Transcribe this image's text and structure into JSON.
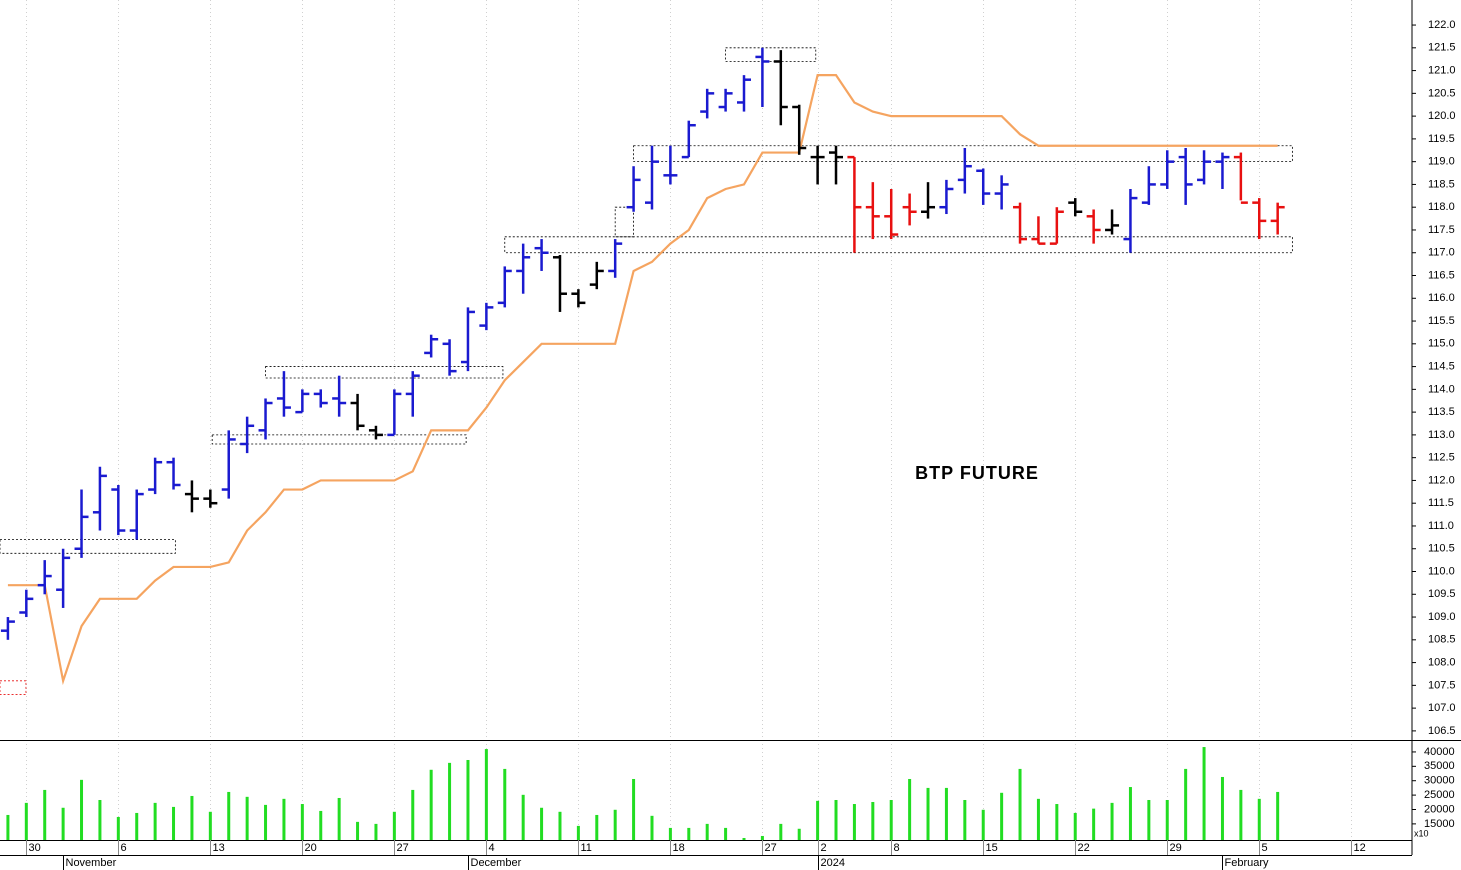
{
  "chart_data": {
    "type": "ohlc",
    "annotation": "BTP FUTURE",
    "categories": [
      null,
      null,
      null,
      null,
      null,
      null,
      null,
      null,
      null,
      null,
      null,
      null,
      null,
      null,
      null,
      null,
      null,
      null,
      null,
      null,
      null,
      null,
      null,
      null,
      null,
      null,
      null,
      null,
      null,
      null,
      null,
      null,
      null,
      null,
      null,
      null,
      null,
      null,
      null,
      null,
      null,
      null,
      null,
      null,
      null,
      null,
      null,
      null,
      null,
      null,
      null,
      null,
      null,
      null,
      null,
      null,
      null,
      null,
      null,
      null,
      null,
      null,
      null,
      null,
      null,
      null,
      null,
      null,
      null,
      null
    ],
    "open": [
      108.7,
      109.1,
      109.7,
      109.6,
      110.5,
      111.3,
      111.8,
      110.9,
      111.8,
      112.4,
      111.7,
      111.6,
      111.8,
      112.8,
      113.1,
      113.8,
      113.5,
      113.9,
      113.8,
      113.7,
      113.1,
      113.0,
      113.9,
      114.8,
      115.0,
      114.6,
      115.4,
      115.9,
      116.6,
      117.1,
      116.9,
      116.1,
      116.3,
      116.6,
      118.0,
      118.1,
      118.7,
      119.1,
      120.1,
      120.2,
      120.3,
      121.3,
      121.2,
      120.2,
      119.1,
      119.2,
      119.1,
      118.0,
      117.8,
      118.0,
      117.9,
      118.0,
      118.6,
      118.8,
      118.3,
      118.0,
      117.3,
      117.2,
      118.1,
      117.8,
      117.5,
      117.3,
      118.1,
      118.5,
      119.1,
      118.6,
      119.0,
      119.1,
      118.1,
      117.7
    ],
    "high": [
      109.0,
      109.6,
      110.25,
      110.5,
      111.8,
      112.3,
      111.9,
      111.8,
      112.5,
      112.5,
      112.0,
      111.8,
      113.1,
      113.4,
      113.8,
      114.4,
      114.0,
      114.0,
      114.3,
      113.9,
      113.2,
      114.0,
      114.4,
      115.2,
      115.1,
      115.8,
      115.9,
      116.7,
      117.2,
      117.3,
      116.95,
      116.2,
      116.8,
      117.3,
      118.9,
      119.35,
      119.35,
      119.9,
      120.6,
      120.6,
      120.9,
      121.5,
      121.45,
      120.25,
      119.35,
      119.35,
      119.1,
      118.55,
      118.4,
      118.3,
      118.55,
      118.6,
      119.3,
      118.85,
      118.7,
      118.1,
      117.8,
      118.0,
      118.2,
      117.95,
      117.95,
      118.4,
      118.9,
      119.25,
      119.3,
      119.25,
      119.2,
      119.2,
      118.2,
      118.1
    ],
    "low": [
      108.5,
      109.0,
      109.5,
      109.2,
      110.3,
      110.9,
      110.8,
      110.7,
      111.7,
      111.8,
      111.3,
      111.4,
      111.6,
      112.6,
      112.9,
      113.4,
      113.5,
      113.6,
      113.4,
      113.1,
      112.9,
      113.0,
      113.4,
      114.7,
      114.3,
      114.4,
      115.3,
      115.8,
      116.1,
      116.6,
      115.7,
      115.8,
      116.2,
      116.45,
      117.9,
      117.95,
      118.5,
      119.1,
      119.95,
      120.1,
      120.1,
      120.2,
      119.8,
      119.15,
      118.5,
      118.5,
      117.0,
      117.3,
      117.3,
      117.6,
      117.75,
      117.85,
      118.3,
      118.05,
      117.95,
      117.2,
      117.2,
      117.2,
      117.8,
      117.2,
      117.4,
      117.0,
      118.05,
      118.4,
      118.05,
      118.5,
      118.4,
      118.15,
      117.3,
      117.4
    ],
    "close": [
      108.9,
      109.4,
      109.9,
      110.3,
      111.2,
      112.1,
      110.9,
      111.7,
      112.4,
      111.9,
      111.6,
      111.5,
      112.9,
      113.2,
      113.7,
      113.6,
      113.9,
      113.7,
      113.7,
      113.2,
      113.0,
      113.9,
      114.3,
      115.1,
      114.4,
      115.7,
      115.8,
      116.6,
      116.9,
      117.0,
      116.1,
      115.9,
      116.6,
      117.2,
      118.6,
      119.0,
      118.7,
      119.8,
      120.5,
      120.5,
      120.8,
      121.2,
      120.2,
      119.3,
      119.1,
      119.1,
      118.0,
      117.8,
      117.4,
      117.9,
      118.0,
      118.4,
      118.9,
      118.3,
      118.5,
      117.3,
      117.2,
      117.9,
      117.9,
      117.5,
      117.6,
      118.2,
      118.5,
      119.0,
      118.5,
      119.0,
      119.1,
      118.1,
      117.7,
      118.0
    ],
    "bar_colors": [
      "#1a1ad0",
      "#1a1ad0",
      "#1a1ad0",
      "#1a1ad0",
      "#1a1ad0",
      "#1a1ad0",
      "#1a1ad0",
      "#1a1ad0",
      "#1a1ad0",
      "#1a1ad0",
      "#000000",
      "#000000",
      "#1a1ad0",
      "#1a1ad0",
      "#1a1ad0",
      "#1a1ad0",
      "#1a1ad0",
      "#1a1ad0",
      "#1a1ad0",
      "#000000",
      "#000000",
      "#1a1ad0",
      "#1a1ad0",
      "#1a1ad0",
      "#1a1ad0",
      "#1a1ad0",
      "#1a1ad0",
      "#1a1ad0",
      "#1a1ad0",
      "#1a1ad0",
      "#000000",
      "#000000",
      "#000000",
      "#1a1ad0",
      "#1a1ad0",
      "#1a1ad0",
      "#1a1ad0",
      "#1a1ad0",
      "#1a1ad0",
      "#1a1ad0",
      "#1a1ad0",
      "#1a1ad0",
      "#000000",
      "#000000",
      "#000000",
      "#000000",
      "#e81010",
      "#e81010",
      "#e81010",
      "#e81010",
      "#000000",
      "#1a1ad0",
      "#1a1ad0",
      "#1a1ad0",
      "#1a1ad0",
      "#e81010",
      "#e81010",
      "#e81010",
      "#000000",
      "#e81010",
      "#000000",
      "#1a1ad0",
      "#1a1ad0",
      "#1a1ad0",
      "#1a1ad0",
      "#1a1ad0",
      "#1a1ad0",
      "#e81010",
      "#e81010",
      "#e81010"
    ],
    "line": {
      "color": "#f5a460",
      "values": [
        109.7,
        109.7,
        109.7,
        107.6,
        108.8,
        109.4,
        109.4,
        109.4,
        109.8,
        110.1,
        110.1,
        110.1,
        110.2,
        110.9,
        111.3,
        111.8,
        111.8,
        112.0,
        112.0,
        112.0,
        112.0,
        112.0,
        112.2,
        113.1,
        113.1,
        113.1,
        113.6,
        114.2,
        114.6,
        115.0,
        115.0,
        115.0,
        115.0,
        115.0,
        116.6,
        116.8,
        117.2,
        117.5,
        118.2,
        118.4,
        118.5,
        119.2,
        119.2,
        119.2,
        120.9,
        120.9,
        120.3,
        120.1,
        120.0,
        120.0,
        120.0,
        120.0,
        120.0,
        120.0,
        120.0,
        119.6,
        119.35,
        119.35,
        119.35,
        119.35,
        119.35,
        119.35,
        119.35,
        119.35,
        119.35,
        119.35,
        119.35,
        119.35,
        119.35,
        119.35
      ]
    },
    "zones": [
      {
        "x0": -0.43,
        "x1": 9.1,
        "low": 110.4,
        "high": 110.7,
        "color": "#000000"
      },
      {
        "x0": -0.43,
        "x1": 0.98,
        "low": 107.3,
        "high": 107.6,
        "color": "#e81010"
      },
      {
        "x0": 11.1,
        "x1": 24.9,
        "low": 112.8,
        "high": 113.0,
        "color": "#000000"
      },
      {
        "x0": 14,
        "x1": 26.9,
        "low": 114.25,
        "high": 114.5,
        "color": "#000000"
      },
      {
        "x0": 27,
        "x1": 69.8,
        "low": 117.0,
        "high": 117.35,
        "color": "#000000"
      },
      {
        "x0": 33,
        "x1": 34,
        "low": 117.35,
        "high": 118.0,
        "color": "#000000"
      },
      {
        "x0": 34,
        "x1": 69.8,
        "low": 119.0,
        "high": 119.35,
        "color": "#000000"
      },
      {
        "x0": 39,
        "x1": 43.9,
        "low": 121.2,
        "high": 121.5,
        "color": "#000000"
      }
    ],
    "xlim": [
      -0.43,
      76.3
    ],
    "ylim": [
      106.3,
      122.55
    ],
    "yticks": [
      {
        "value": 106.5,
        "label": "106.5"
      },
      {
        "value": 107,
        "label": "107.0"
      },
      {
        "value": 107.5,
        "label": "107.5"
      },
      {
        "value": 108,
        "label": "108.0"
      },
      {
        "value": 108.5,
        "label": "108.5"
      },
      {
        "value": 109,
        "label": "109.0"
      },
      {
        "value": 109.5,
        "label": "109.5"
      },
      {
        "value": 110,
        "label": "110.0"
      },
      {
        "value": 110.5,
        "label": "110.5"
      },
      {
        "value": 111,
        "label": "111.0"
      },
      {
        "value": 111.5,
        "label": "111.5"
      },
      {
        "value": 112,
        "label": "112.0"
      },
      {
        "value": 112.5,
        "label": "112.5"
      },
      {
        "value": 113,
        "label": "113.0"
      },
      {
        "value": 113.5,
        "label": "113.5"
      },
      {
        "value": 114,
        "label": "114.0"
      },
      {
        "value": 114.5,
        "label": "114.5"
      },
      {
        "value": 115,
        "label": "115.0"
      },
      {
        "value": 115.5,
        "label": "115.5"
      },
      {
        "value": 116,
        "label": "116.0"
      },
      {
        "value": 116.5,
        "label": "116.5"
      },
      {
        "value": 117,
        "label": "117.0"
      },
      {
        "value": 117.5,
        "label": "117.5"
      },
      {
        "value": 118,
        "label": "118.0"
      },
      {
        "value": 118.5,
        "label": "118.5"
      },
      {
        "value": 119,
        "label": "119.0"
      },
      {
        "value": 119.5,
        "label": "119.5"
      },
      {
        "value": 120,
        "label": "120.0"
      },
      {
        "value": 120.5,
        "label": "120.5"
      },
      {
        "value": 121,
        "label": "121.0"
      },
      {
        "value": 121.5,
        "label": "121.5"
      },
      {
        "value": 122,
        "label": "122.0"
      }
    ],
    "xticks": [
      {
        "value": 1,
        "label": "30"
      },
      {
        "value": 6,
        "label": "6"
      },
      {
        "value": 11,
        "label": "13"
      },
      {
        "value": 16,
        "label": "20"
      },
      {
        "value": 21,
        "label": "27"
      },
      {
        "value": 26,
        "label": "4"
      },
      {
        "value": 31,
        "label": "11"
      },
      {
        "value": 36,
        "label": "18"
      },
      {
        "value": 41,
        "label": "27"
      },
      {
        "value": 44,
        "label": "2"
      },
      {
        "value": 48,
        "label": "8"
      },
      {
        "value": 53,
        "label": "15"
      },
      {
        "value": 58,
        "label": "22"
      },
      {
        "value": 63,
        "label": "29"
      },
      {
        "value": 68,
        "label": "5"
      },
      {
        "value": 73,
        "label": "12"
      }
    ],
    "month_ticks": [
      {
        "value": 3,
        "label": "November"
      },
      {
        "value": 25,
        "label": "December"
      },
      {
        "value": 44,
        "label": "2024"
      },
      {
        "value": 66,
        "label": "February"
      }
    ],
    "grid": true,
    "volume": {
      "type": "bar",
      "color": "#22dd22",
      "unit_label": "x10",
      "values": [
        18100,
        22300,
        26800,
        20600,
        30300,
        23300,
        17400,
        18800,
        22300,
        20900,
        24700,
        19200,
        26100,
        24400,
        21600,
        23700,
        21900,
        19500,
        24000,
        15700,
        15000,
        19200,
        26800,
        33800,
        36200,
        37200,
        41000,
        34100,
        25100,
        20600,
        19200,
        14300,
        18100,
        19900,
        30600,
        17800,
        13600,
        13600,
        15000,
        13600,
        10100,
        10800,
        15000,
        13300,
        23000,
        23300,
        21900,
        22600,
        23300,
        30600,
        27500,
        27500,
        23300,
        19900,
        25800,
        34100,
        23700,
        21900,
        18800,
        20300,
        22300,
        27800,
        23300,
        23300,
        34100,
        41700,
        31300,
        26800,
        23700,
        26100
      ],
      "ylim": [
        9400,
        43800
      ],
      "yticks": [
        15000,
        20000,
        25000,
        30000,
        35000,
        40000
      ]
    }
  }
}
